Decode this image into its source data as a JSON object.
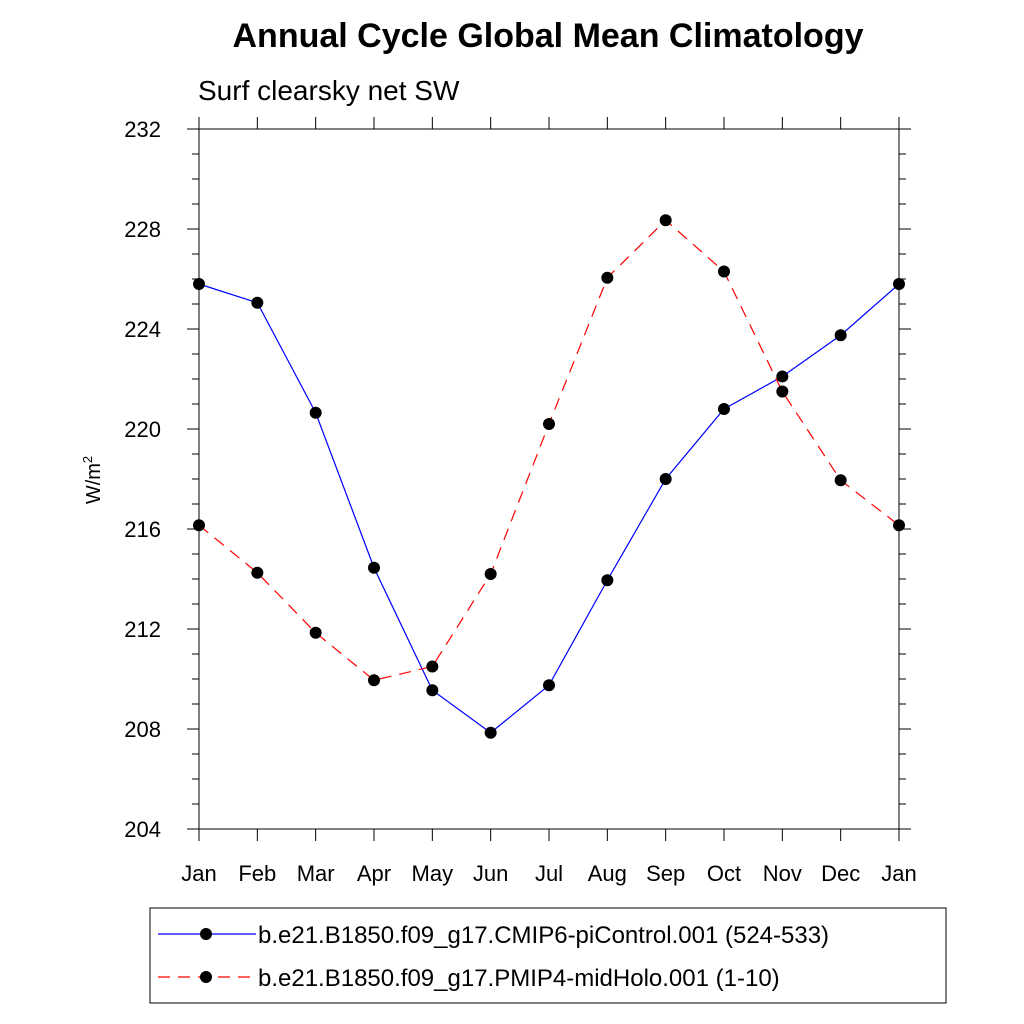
{
  "chart_data": {
    "type": "line",
    "title": "Annual Cycle Global Mean Climatology",
    "subtitle": "Surf clearsky net SW",
    "ylabel": "W/m",
    "ylabel_sup": "2",
    "xlabel": "",
    "categories": [
      "Jan",
      "Feb",
      "Mar",
      "Apr",
      "May",
      "Jun",
      "Jul",
      "Aug",
      "Sep",
      "Oct",
      "Nov",
      "Dec",
      "Jan"
    ],
    "ylim": [
      204,
      232
    ],
    "yticks": [
      204,
      208,
      212,
      216,
      220,
      224,
      228,
      232
    ],
    "grid": false,
    "legend_position": "bottom",
    "series": [
      {
        "name": "b.e21.B1850.f09_g17.CMIP6-piControl.001 (524-533)",
        "color": "#0000ff",
        "dash": "solid",
        "values": [
          225.8,
          225.05,
          220.65,
          214.45,
          209.55,
          207.85,
          209.75,
          213.95,
          218.0,
          220.8,
          222.1,
          223.75,
          225.8
        ]
      },
      {
        "name": "b.e21.B1850.f09_g17.PMIP4-midHolo.001 (1-10)",
        "color": "#ff0000",
        "dash": "dashed",
        "values": [
          216.15,
          214.25,
          211.85,
          209.95,
          210.5,
          214.2,
          220.2,
          226.05,
          228.35,
          226.3,
          221.5,
          217.95,
          216.15
        ]
      }
    ]
  }
}
